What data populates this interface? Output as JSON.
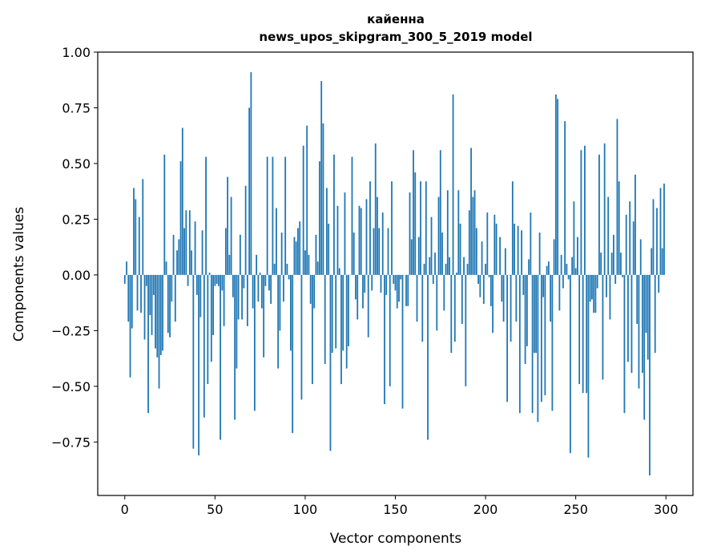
{
  "chart_data": {
    "type": "bar",
    "title": "кайенна",
    "subtitle": "news_upos_skipgram_300_5_2019 model",
    "xlabel": "Vector components",
    "ylabel": "Components values",
    "xlim": [
      -15,
      315
    ],
    "ylim": [
      -0.99,
      1.0
    ],
    "xticks": [
      "0",
      "50",
      "100",
      "150",
      "200",
      "250",
      "300"
    ],
    "yticks": [
      "1.00",
      "0.75",
      "0.50",
      "0.25",
      "0.00",
      "−0.25",
      "−0.50",
      "−0.75"
    ],
    "grid": false,
    "color": "#1f77b4",
    "values": [
      -0.04,
      0.06,
      -0.21,
      -0.46,
      -0.24,
      0.39,
      0.34,
      -0.16,
      0.26,
      -0.17,
      0.43,
      -0.29,
      -0.05,
      -0.62,
      -0.18,
      -0.27,
      -0.09,
      -0.33,
      -0.37,
      -0.51,
      -0.36,
      -0.34,
      0.54,
      0.06,
      -0.26,
      -0.28,
      -0.12,
      0.18,
      -0.21,
      0.11,
      0.16,
      0.51,
      0.66,
      0.21,
      0.29,
      -0.05,
      0.29,
      0.11,
      -0.78,
      0.24,
      -0.09,
      -0.81,
      -0.19,
      0.2,
      -0.64,
      0.53,
      -0.49,
      0.01,
      -0.39,
      -0.27,
      -0.05,
      -0.04,
      -0.05,
      -0.74,
      -0.07,
      -0.23,
      0.21,
      0.44,
      0.09,
      0.35,
      -0.1,
      -0.65,
      -0.42,
      -0.2,
      0.18,
      -0.2,
      -0.06,
      0.4,
      -0.23,
      0.75,
      0.91,
      -0.15,
      -0.61,
      0.09,
      -0.12,
      0.01,
      -0.15,
      -0.37,
      -0.05,
      0.53,
      -0.07,
      -0.13,
      0.53,
      0.05,
      0.3,
      -0.42,
      -0.25,
      0.19,
      -0.12,
      0.53,
      0.05,
      -0.02,
      -0.34,
      -0.71,
      0.17,
      0.15,
      0.21,
      0.24,
      -0.56,
      0.58,
      0.11,
      0.67,
      0.09,
      -0.13,
      -0.49,
      -0.15,
      0.18,
      0.06,
      0.51,
      0.87,
      0.68,
      -0.4,
      0.39,
      0.23,
      -0.79,
      -0.35,
      0.54,
      -0.33,
      0.31,
      0.03,
      -0.49,
      -0.34,
      0.37,
      -0.42,
      -0.32,
      0.0,
      0.53,
      0.19,
      -0.11,
      -0.2,
      0.31,
      0.3,
      -0.15,
      -0.08,
      0.34,
      -0.28,
      0.42,
      -0.07,
      0.21,
      0.59,
      0.35,
      0.21,
      -0.08,
      0.28,
      -0.58,
      -0.09,
      0.21,
      -0.5,
      0.42,
      -0.04,
      -0.07,
      -0.15,
      -0.12,
      -0.02,
      -0.6,
      0.0,
      -0.14,
      -0.14,
      0.37,
      0.16,
      0.56,
      0.46,
      -0.21,
      0.17,
      0.42,
      -0.3,
      0.05,
      0.42,
      -0.74,
      0.08,
      0.26,
      -0.04,
      0.1,
      -0.25,
      0.35,
      0.56,
      0.19,
      -0.16,
      0.05,
      0.38,
      0.08,
      -0.35,
      0.81,
      -0.3,
      0.01,
      0.38,
      0.23,
      -0.22,
      0.08,
      -0.5,
      0.05,
      0.29,
      0.57,
      0.35,
      0.38,
      0.21,
      -0.04,
      -0.1,
      0.15,
      -0.13,
      0.05,
      0.28,
      -0.01,
      -0.14,
      -0.26,
      0.27,
      0.23,
      0.0,
      0.17,
      -0.12,
      -0.21,
      0.12,
      -0.57,
      0.0,
      -0.3,
      0.42,
      0.23,
      -0.21,
      0.22,
      -0.62,
      0.2,
      -0.09,
      -0.4,
      -0.32,
      0.07,
      0.28,
      -0.62,
      -0.35,
      -0.35,
      -0.66,
      0.19,
      -0.57,
      -0.1,
      -0.54,
      0.04,
      0.06,
      -0.21,
      -0.61,
      0.16,
      0.81,
      0.79,
      -0.16,
      0.09,
      -0.06,
      0.69,
      0.05,
      -0.02,
      -0.8,
      0.08,
      0.33,
      0.03,
      0.17,
      -0.49,
      0.56,
      -0.53,
      0.58,
      -0.53,
      -0.82,
      -0.12,
      -0.11,
      -0.17,
      -0.17,
      -0.06,
      0.54,
      0.1,
      -0.47,
      0.59,
      -0.1,
      0.35,
      -0.2,
      0.1,
      0.18,
      -0.04,
      0.7,
      0.42,
      0.1,
      -0.01,
      -0.62,
      0.27,
      -0.39,
      0.33,
      -0.44,
      0.24,
      0.45,
      -0.22,
      -0.51,
      0.16,
      -0.44,
      -0.65,
      -0.26,
      -0.38,
      -0.9,
      0.12,
      0.34,
      -0.35,
      0.3,
      -0.08,
      0.39,
      0.12,
      0.41
    ]
  }
}
